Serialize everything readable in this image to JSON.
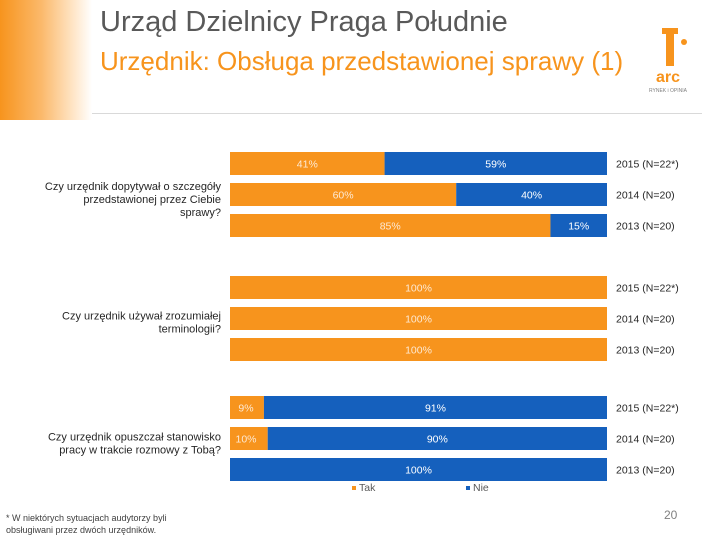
{
  "header": {
    "title": "Urząd Dzielnicy Praga Południe",
    "subtitle": "Urzędnik: Obsługa przedstawionej sprawy (1)",
    "logo_text": "arc",
    "logo_subtext": "RYNEK i OPINIA"
  },
  "footnote": "* W niektórych sytuacjach audytorzy byli obsługiwani przez dwóch urzędników.",
  "page_number": "20",
  "colors": {
    "tak": "#f7941d",
    "nie": "#1560bd",
    "label_on_orange": "#fde9d3",
    "label_on_blue": "#ffffff"
  },
  "chart_data": {
    "type": "bar",
    "orientation": "horizontal",
    "stacked": true,
    "legend_position": "bottom",
    "legend": [
      "Tak",
      "Nie"
    ],
    "series_names": [
      "Tak",
      "Nie"
    ],
    "xlim": [
      0,
      100
    ],
    "groups": [
      {
        "question": "Czy urzędnik dopytywał o szczegóły przedstawionej przez Ciebie sprawy?",
        "rows": [
          {
            "year": "2015 (N=22*)",
            "values": [
              41,
              59
            ],
            "labels": [
              "41%",
              "59%"
            ]
          },
          {
            "year": "2014 (N=20)",
            "values": [
              60,
              40
            ],
            "labels": [
              "60%",
              "40%"
            ]
          },
          {
            "year": "2013 (N=20)",
            "values": [
              85,
              15
            ],
            "labels": [
              "85%",
              "15%"
            ]
          }
        ]
      },
      {
        "question": "Czy urzędnik używał zrozumiałej terminologii?",
        "rows": [
          {
            "year": "2015 (N=22*)",
            "values": [
              100,
              0
            ],
            "labels": [
              "100%",
              ""
            ]
          },
          {
            "year": "2014 (N=20)",
            "values": [
              100,
              0
            ],
            "labels": [
              "100%",
              ""
            ]
          },
          {
            "year": "2013 (N=20)",
            "values": [
              100,
              0
            ],
            "labels": [
              "100%",
              ""
            ]
          }
        ]
      },
      {
        "question": "Czy urzędnik opuszczał stanowisko pracy w trakcie rozmowy z Tobą?",
        "rows": [
          {
            "year": "2015 (N=22*)",
            "values": [
              9,
              91
            ],
            "labels": [
              "9%",
              "91%"
            ]
          },
          {
            "year": "2014 (N=20)",
            "values": [
              10,
              90
            ],
            "labels": [
              "10%",
              "90%"
            ]
          },
          {
            "year": "2013 (N=20)",
            "values": [
              0,
              100
            ],
            "labels": [
              "",
              "100%"
            ]
          }
        ]
      }
    ]
  }
}
